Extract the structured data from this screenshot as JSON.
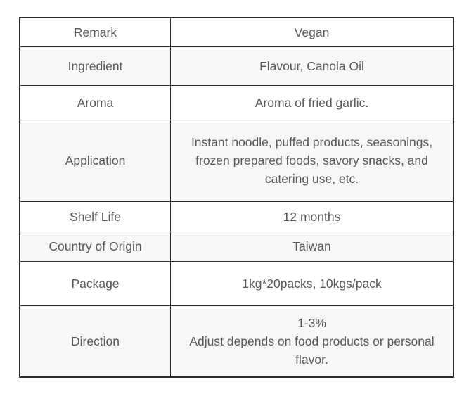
{
  "table": {
    "colors": {
      "border": "#2b2b2b",
      "text": "#595959",
      "row_bg": "#ffffff",
      "row_alt_bg": "#f7f7f7"
    },
    "rows": [
      {
        "label": "Remark",
        "value": "Vegan"
      },
      {
        "label": "Ingredient",
        "value": "Flavour, Canola Oil"
      },
      {
        "label": "Aroma",
        "value": "Aroma of fried garlic."
      },
      {
        "label": "Application",
        "value": "Instant noodle, puffed products, seasonings,\nfrozen prepared foods, savory snacks, and\ncatering use, etc."
      },
      {
        "label": "Shelf Life",
        "value": "12 months"
      },
      {
        "label": "Country of Origin",
        "value": "Taiwan"
      },
      {
        "label": "Package",
        "value": "1kg*20packs, 10kgs/pack"
      },
      {
        "label": "Direction",
        "value": "1-3%\nAdjust depends on food products or personal\nflavor."
      }
    ]
  }
}
